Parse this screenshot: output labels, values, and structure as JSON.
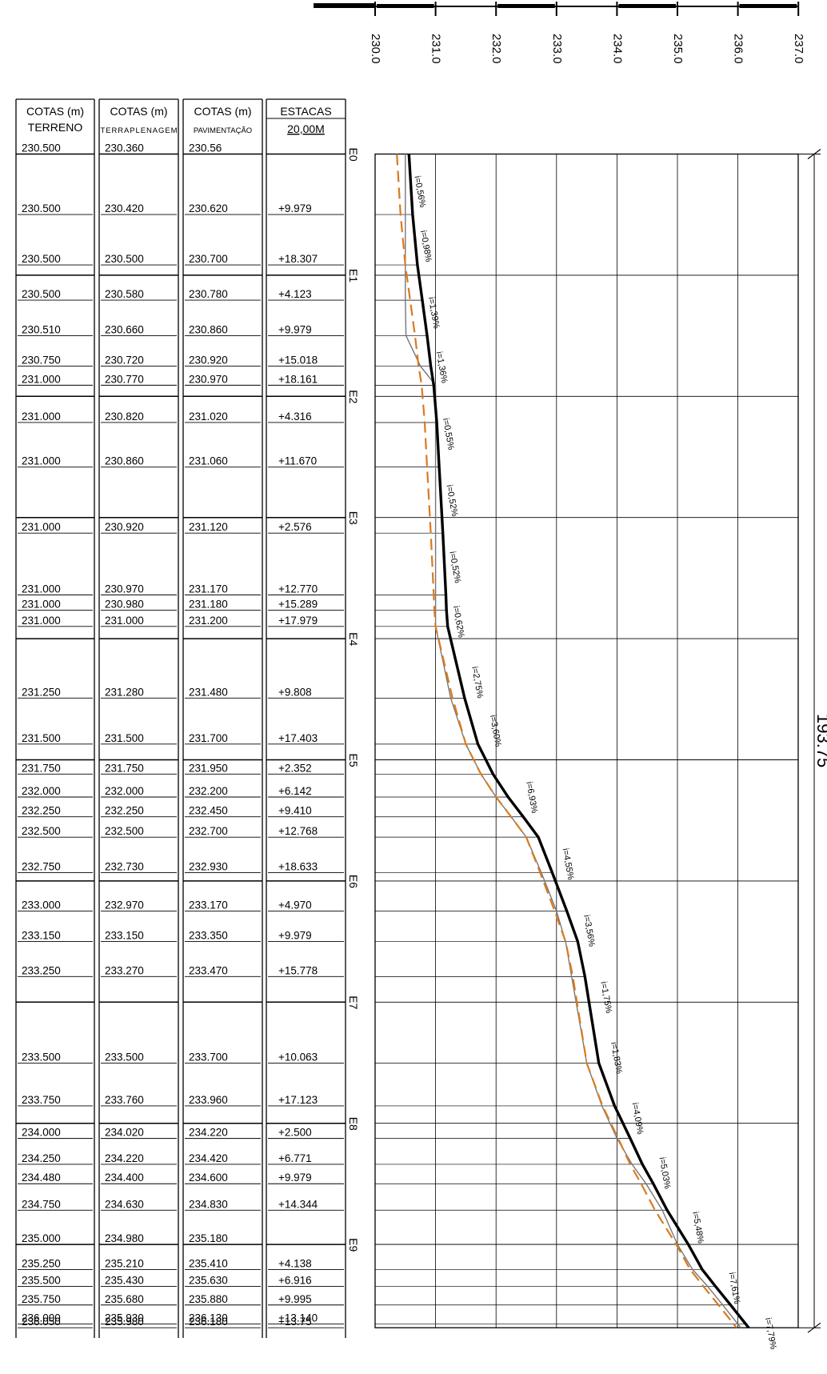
{
  "scale": {
    "ticks": [
      "230.0",
      "231.0",
      "232.0",
      "233.0",
      "234.0",
      "235.0",
      "236.0",
      "237.0"
    ]
  },
  "table": {
    "headers": [
      {
        "line1": "COTAS (m)",
        "line2": "TERRENO"
      },
      {
        "line1": "COTAS (m)",
        "line2": "TERRAPLENAGEM"
      },
      {
        "line1": "COTAS (m)",
        "line2": "PAVIMENTAÇÃO"
      },
      {
        "line1": "ESTACAS",
        "line2": "20,00M"
      }
    ],
    "rows": [
      {
        "s": 0,
        "terreno": "230.500",
        "terra": "230.360",
        "pav": "230.56",
        "label": ""
      },
      {
        "s": 9.979,
        "terreno": "230.500",
        "terra": "230.420",
        "pav": "230.620",
        "label": "+9.979"
      },
      {
        "s": 18.307,
        "terreno": "230.500",
        "terra": "230.500",
        "pav": "230.700",
        "label": "+18.307"
      },
      {
        "s": 24.123,
        "terreno": "230.500",
        "terra": "230.580",
        "pav": "230.780",
        "label": "+4.123"
      },
      {
        "s": 29.979,
        "terreno": "230.510",
        "terra": "230.660",
        "pav": "230.860",
        "label": "+9.979"
      },
      {
        "s": 35.018,
        "terreno": "230.750",
        "terra": "230.720",
        "pav": "230.920",
        "label": "+15.018"
      },
      {
        "s": 38.161,
        "terreno": "231.000",
        "terra": "230.770",
        "pav": "230.970",
        "label": "+18.161"
      },
      {
        "s": 44.316,
        "terreno": "231.000",
        "terra": "230.820",
        "pav": "231.020",
        "label": "+4.316"
      },
      {
        "s": 51.67,
        "terreno": "231.000",
        "terra": "230.860",
        "pav": "231.060",
        "label": "+11.670"
      },
      {
        "s": 62.576,
        "terreno": "231.000",
        "terra": "230.920",
        "pav": "231.120",
        "label": "+2.576"
      },
      {
        "s": 72.77,
        "terreno": "231.000",
        "terra": "230.970",
        "pav": "231.170",
        "label": "+12.770"
      },
      {
        "s": 75.289,
        "terreno": "231.000",
        "terra": "230.980",
        "pav": "231.180",
        "label": "+15.289"
      },
      {
        "s": 77.979,
        "terreno": "231.000",
        "terra": "231.000",
        "pav": "231.200",
        "label": "+17.979"
      },
      {
        "s": 89.808,
        "terreno": "231.250",
        "terra": "231.280",
        "pav": "231.480",
        "label": "+9.808"
      },
      {
        "s": 97.403,
        "terreno": "231.500",
        "terra": "231.500",
        "pav": "231.700",
        "label": "+17.403"
      },
      {
        "s": 102.352,
        "terreno": "231.750",
        "terra": "231.750",
        "pav": "231.950",
        "label": "+2.352"
      },
      {
        "s": 106.142,
        "terreno": "232.000",
        "terra": "232.000",
        "pav": "232.200",
        "label": "+6.142"
      },
      {
        "s": 109.41,
        "terreno": "232.250",
        "terra": "232.250",
        "pav": "232.450",
        "label": "+9.410"
      },
      {
        "s": 112.768,
        "terreno": "232.500",
        "terra": "232.500",
        "pav": "232.700",
        "label": "+12.768"
      },
      {
        "s": 118.633,
        "terreno": "232.750",
        "terra": "232.730",
        "pav": "232.930",
        "label": "+18.633"
      },
      {
        "s": 124.97,
        "terreno": "233.000",
        "terra": "232.970",
        "pav": "233.170",
        "label": "+4.970"
      },
      {
        "s": 129.979,
        "terreno": "233.150",
        "terra": "233.150",
        "pav": "233.350",
        "label": "+9.979"
      },
      {
        "s": 135.778,
        "terreno": "233.250",
        "terra": "233.270",
        "pav": "233.470",
        "label": "+15.778"
      },
      {
        "s": 150.063,
        "terreno": "233.500",
        "terra": "233.500",
        "pav": "233.700",
        "label": "+10.063"
      },
      {
        "s": 157.123,
        "terreno": "233.750",
        "terra": "233.760",
        "pav": "233.960",
        "label": "+17.123"
      },
      {
        "s": 162.5,
        "terreno": "234.000",
        "terra": "234.020",
        "pav": "234.220",
        "label": "+2.500"
      },
      {
        "s": 166.771,
        "terreno": "234.250",
        "terra": "234.220",
        "pav": "234.420",
        "label": "+6.771"
      },
      {
        "s": 169.979,
        "terreno": "234.480",
        "terra": "234.400",
        "pav": "234.600",
        "label": "+9.979"
      },
      {
        "s": 174.344,
        "terreno": "234.750",
        "terra": "234.630",
        "pav": "234.830",
        "label": "+14.344"
      },
      {
        "s": 180.0,
        "terreno": "235.000",
        "terra": "234.980",
        "pav": "235.180",
        "label": ""
      },
      {
        "s": 184.138,
        "terreno": "235.250",
        "terra": "235.210",
        "pav": "235.410",
        "label": "+4.138"
      },
      {
        "s": 186.916,
        "terreno": "235.500",
        "terra": "235.430",
        "pav": "235.630",
        "label": "+6.916"
      },
      {
        "s": 189.995,
        "terreno": "235.750",
        "terra": "235.680",
        "pav": "235.880",
        "label": "+9.995"
      },
      {
        "s": 193.14,
        "terreno": "236.000",
        "terra": "235.930",
        "pav": "236.130",
        "label": "+13.140"
      },
      {
        "s": 193.75,
        "terreno": "236.050",
        "terra": "235.980",
        "pav": "236.180",
        "label": "+13.75"
      }
    ]
  },
  "stations": [
    "E0",
    "E1",
    "E2",
    "E3",
    "E4",
    "E5",
    "E6",
    "E7",
    "E8",
    "E9"
  ],
  "slopes": [
    {
      "s": 5,
      "v": 230.6,
      "text": "i=0,56%"
    },
    {
      "s": 14,
      "v": 230.7,
      "text": "i=0,98%"
    },
    {
      "s": 25,
      "v": 230.83,
      "text": "i=1,39%"
    },
    {
      "s": 34,
      "v": 230.96,
      "text": "i=1,36%"
    },
    {
      "s": 45,
      "v": 231.07,
      "text": "i=0,55%"
    },
    {
      "s": 56,
      "v": 231.13,
      "text": "i=0,52%"
    },
    {
      "s": 67,
      "v": 231.18,
      "text": "i=0,52%"
    },
    {
      "s": 76,
      "v": 231.24,
      "text": "i=0,62%"
    },
    {
      "s": 86,
      "v": 231.55,
      "text": "i=2,75%"
    },
    {
      "s": 94,
      "v": 231.85,
      "text": "i=3,60%"
    },
    {
      "s": 105,
      "v": 232.45,
      "text": "i=6,93%"
    },
    {
      "s": 116,
      "v": 233.05,
      "text": "i=4,55%"
    },
    {
      "s": 127,
      "v": 233.4,
      "text": "i=3,56%"
    },
    {
      "s": 138,
      "v": 233.68,
      "text": "i=1,75%"
    },
    {
      "s": 148,
      "v": 233.85,
      "text": "i=1,83%"
    },
    {
      "s": 158,
      "v": 234.2,
      "text": "i=4,09%"
    },
    {
      "s": 167,
      "v": 234.65,
      "text": "i=5,03%"
    },
    {
      "s": 176,
      "v": 235.2,
      "text": "i=5,48%"
    },
    {
      "s": 186,
      "v": 235.8,
      "text": "i=7,61%"
    },
    {
      "s": 193.5,
      "v": 236.4,
      "text": "i=7,79%"
    }
  ],
  "total_length": "193.75",
  "profile_colors": {
    "terreno": "#777777",
    "terraplenagem": "#d97a1f",
    "pavimentacao": "#000000"
  }
}
